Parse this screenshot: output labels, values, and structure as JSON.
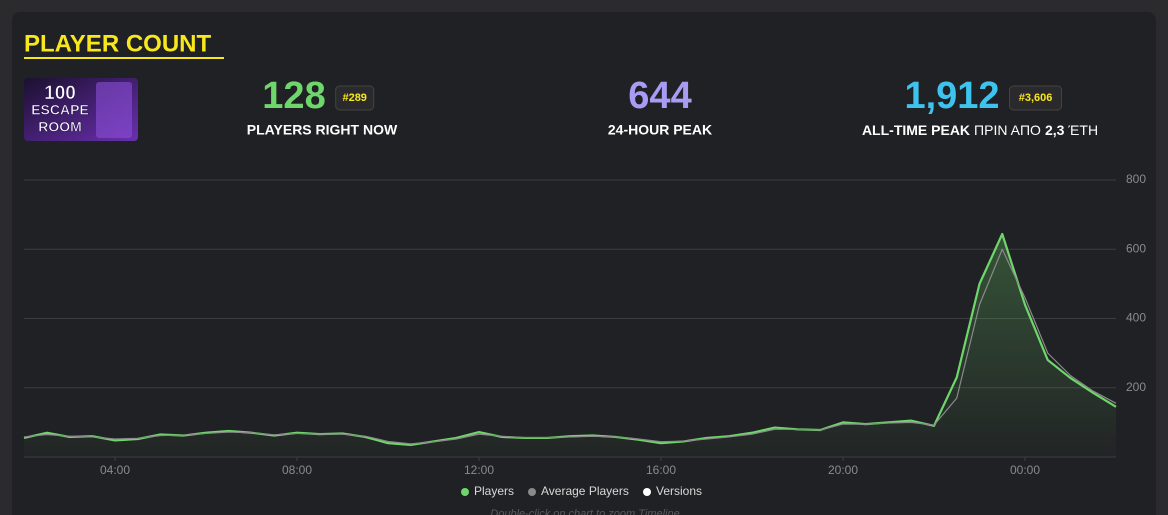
{
  "header": {
    "title": "PLAYER COUNT"
  },
  "thumbnail": {
    "lines": [
      "100",
      "ESCAPE",
      "ROOM"
    ]
  },
  "stats": [
    {
      "value": "128",
      "rank": "#289",
      "label": "PLAYERS RIGHT NOW",
      "color": "#6fd66b"
    },
    {
      "value": "644",
      "label": "24-HOUR PEAK",
      "color": "#a89bf3"
    },
    {
      "value": "1,912",
      "rank": "#3,606",
      "color": "#3ec3ee",
      "label_parts": [
        {
          "text": "ALL-TIME PEAK",
          "bold": true
        },
        {
          "text": "ΠΡΙΝ ΑΠΟ",
          "bold": false
        },
        {
          "text": "2,3",
          "bold": true
        },
        {
          "text": "ΈΤΗ",
          "bold": false
        }
      ]
    }
  ],
  "chart_data": {
    "type": "line",
    "x": [
      2,
      2.5,
      3,
      3.5,
      4,
      4.5,
      5,
      5.5,
      6,
      6.5,
      7,
      7.5,
      8,
      8.5,
      9,
      9.5,
      10,
      10.5,
      11,
      11.5,
      12,
      12.5,
      13,
      13.5,
      14,
      14.5,
      15,
      15.5,
      16,
      16.5,
      17,
      17.5,
      18,
      18.5,
      19,
      19.5,
      20,
      20.5,
      21,
      21.5,
      22,
      22.5,
      23,
      23.5,
      24,
      24.5,
      25,
      25.5,
      26
    ],
    "series": [
      {
        "name": "Players",
        "color": "#6fd66b",
        "values": [
          55,
          70,
          58,
          60,
          48,
          52,
          65,
          62,
          70,
          75,
          70,
          62,
          70,
          66,
          68,
          58,
          40,
          35,
          45,
          55,
          72,
          58,
          55,
          55,
          60,
          62,
          58,
          50,
          40,
          45,
          55,
          60,
          70,
          85,
          80,
          78,
          100,
          95,
          100,
          105,
          90,
          230,
          500,
          644,
          440,
          280,
          228,
          185,
          145
        ]
      },
      {
        "name": "Average Players",
        "color": "#8a8a8a",
        "values": [
          58,
          65,
          60,
          58,
          52,
          54,
          62,
          63,
          68,
          72,
          70,
          64,
          68,
          66,
          66,
          60,
          45,
          38,
          44,
          52,
          66,
          60,
          56,
          56,
          58,
          60,
          58,
          52,
          44,
          46,
          52,
          58,
          66,
          80,
          80,
          78,
          95,
          95,
          98,
          100,
          92,
          170,
          440,
          600,
          460,
          300,
          235,
          190,
          155
        ]
      }
    ],
    "markers": {
      "name": "Versions",
      "color": "#ffffff"
    },
    "xlim": [
      2,
      26
    ],
    "xticks": [
      {
        "value": 4,
        "label": "04:00"
      },
      {
        "value": 8,
        "label": "08:00"
      },
      {
        "value": 12,
        "label": "12:00"
      },
      {
        "value": 16,
        "label": "16:00"
      },
      {
        "value": 20,
        "label": "20:00"
      },
      {
        "value": 24,
        "label": "00:00"
      }
    ],
    "ylim": [
      0,
      800
    ],
    "yticks": [
      200,
      400,
      600,
      800
    ],
    "grid": true
  },
  "hint": "Double-click on chart to zoom Timeline"
}
